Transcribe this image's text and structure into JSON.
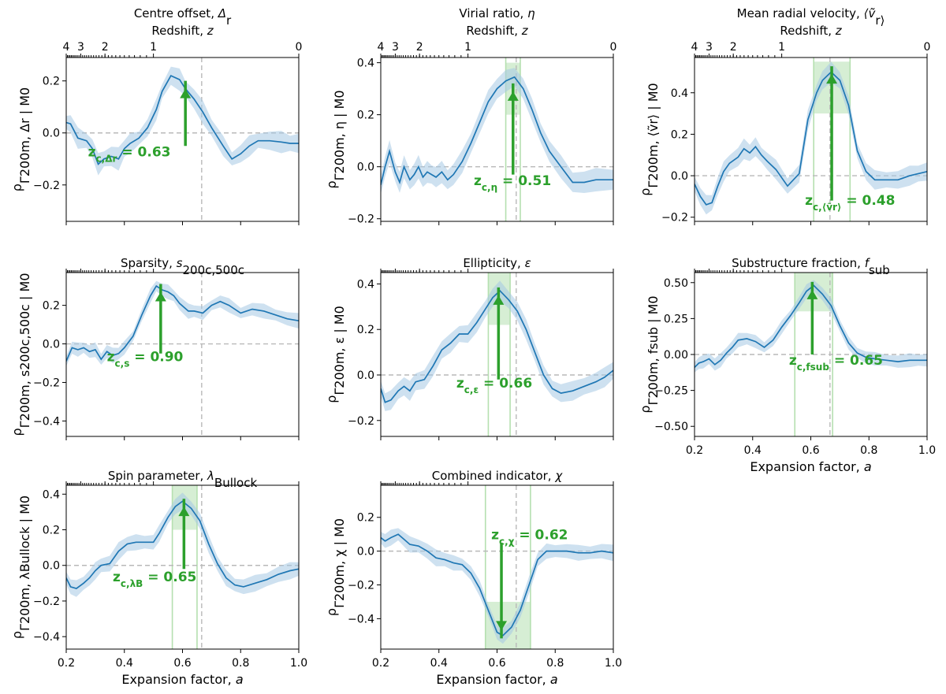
{
  "chart_data": [
    {
      "id": "offset",
      "type": "line",
      "title_lines": [
        "Centre offset, Δ_r",
        "Redshift, z"
      ],
      "ylabel": "ρ_{Γ200m, Δr | M0}",
      "ylim": [
        -0.34,
        0.29
      ],
      "yticks": [
        -0.2,
        0.0,
        0.2
      ],
      "xlim": [
        0.2,
        1.0
      ],
      "top_axis": true,
      "xlabel": "",
      "annotation": "zc,Δr = 0.63",
      "series": [
        {
          "x": [
            0.2,
            0.215,
            0.24,
            0.27,
            0.29,
            0.31,
            0.33,
            0.355,
            0.38,
            0.4,
            0.42,
            0.45,
            0.48,
            0.51,
            0.53,
            0.56,
            0.59,
            0.61,
            0.64,
            0.67,
            0.7,
            0.74,
            0.77,
            0.8,
            0.83,
            0.86,
            0.9,
            0.94,
            0.97,
            1.0
          ],
          "y": [
            0.04,
            0.035,
            -0.02,
            -0.03,
            -0.06,
            -0.12,
            -0.1,
            -0.09,
            -0.1,
            -0.06,
            -0.04,
            -0.02,
            0.02,
            0.09,
            0.16,
            0.22,
            0.205,
            0.17,
            0.13,
            0.08,
            0.02,
            -0.05,
            -0.1,
            -0.08,
            -0.05,
            -0.03,
            -0.03,
            -0.035,
            -0.04,
            -0.04
          ]
        }
      ]
    },
    {
      "id": "virial",
      "type": "line",
      "title_lines": [
        "Virial ratio, η",
        "Redshift, z"
      ],
      "ylabel": "ρ_{Γ200m, η | M0}",
      "ylim": [
        -0.21,
        0.42
      ],
      "yticks": [
        -0.2,
        0.0,
        0.2,
        0.4
      ],
      "xlim": [
        0.2,
        1.0
      ],
      "top_axis": true,
      "xlabel": "",
      "annotation": "zc,η = 0.51",
      "series": [
        {
          "x": [
            0.2,
            0.215,
            0.23,
            0.25,
            0.265,
            0.28,
            0.3,
            0.315,
            0.33,
            0.345,
            0.36,
            0.375,
            0.39,
            0.41,
            0.43,
            0.45,
            0.48,
            0.51,
            0.54,
            0.57,
            0.6,
            0.63,
            0.66,
            0.69,
            0.72,
            0.75,
            0.78,
            0.82,
            0.86,
            0.9,
            0.94,
            1.0
          ],
          "y": [
            -0.07,
            0.0,
            0.06,
            -0.02,
            -0.06,
            0.0,
            -0.05,
            -0.03,
            0.0,
            -0.04,
            -0.02,
            -0.03,
            -0.04,
            -0.02,
            -0.05,
            -0.03,
            0.02,
            0.09,
            0.17,
            0.25,
            0.3,
            0.33,
            0.345,
            0.3,
            0.22,
            0.13,
            0.06,
            0.0,
            -0.06,
            -0.06,
            -0.05,
            -0.05
          ]
        }
      ]
    },
    {
      "id": "velocity",
      "type": "line",
      "title_lines": [
        "Mean radial velocity, ⟨ṽ_r⟩",
        "Redshift, z"
      ],
      "ylabel": "ρ_{Γ200m, ⟨ṽr⟩ | M0}",
      "ylim": [
        -0.22,
        0.57
      ],
      "yticks": [
        -0.2,
        0.0,
        0.2,
        0.4
      ],
      "xlim": [
        0.2,
        1.0
      ],
      "top_axis": true,
      "xlabel": "",
      "annotation": "zc,⟨ṽr⟩ = 0.48",
      "series": [
        {
          "x": [
            0.2,
            0.22,
            0.24,
            0.26,
            0.28,
            0.3,
            0.32,
            0.35,
            0.37,
            0.39,
            0.41,
            0.43,
            0.45,
            0.48,
            0.52,
            0.56,
            0.59,
            0.62,
            0.64,
            0.67,
            0.7,
            0.73,
            0.76,
            0.79,
            0.82,
            0.86,
            0.9,
            0.94,
            0.97,
            1.0
          ],
          "y": [
            -0.04,
            -0.1,
            -0.14,
            -0.13,
            -0.05,
            0.02,
            0.06,
            0.09,
            0.13,
            0.11,
            0.14,
            0.1,
            0.07,
            0.03,
            -0.05,
            0.01,
            0.27,
            0.4,
            0.46,
            0.5,
            0.46,
            0.34,
            0.12,
            0.02,
            -0.02,
            -0.02,
            -0.02,
            0.0,
            0.01,
            0.02
          ]
        }
      ]
    },
    {
      "id": "sparsity",
      "type": "line",
      "title_lines": [
        "Sparsity, s_200c,500c"
      ],
      "ylabel": "ρ_{Γ200m, s200c,500c | M0}",
      "ylim": [
        -0.48,
        0.37
      ],
      "yticks": [
        -0.4,
        -0.2,
        0.0,
        0.2
      ],
      "xlim": [
        0.2,
        1.0
      ],
      "top_axis": false,
      "xlabel": "",
      "annotation": "zc,s = 0.90",
      "series": [
        {
          "x": [
            0.2,
            0.22,
            0.24,
            0.26,
            0.28,
            0.3,
            0.32,
            0.34,
            0.36,
            0.38,
            0.4,
            0.43,
            0.46,
            0.49,
            0.51,
            0.53,
            0.55,
            0.57,
            0.59,
            0.62,
            0.64,
            0.67,
            0.7,
            0.73,
            0.76,
            0.8,
            0.84,
            0.88,
            0.92,
            0.96,
            1.0
          ],
          "y": [
            -0.09,
            -0.02,
            -0.03,
            -0.02,
            -0.04,
            -0.03,
            -0.08,
            -0.04,
            -0.06,
            -0.05,
            -0.02,
            0.04,
            0.15,
            0.25,
            0.3,
            0.28,
            0.27,
            0.25,
            0.21,
            0.17,
            0.17,
            0.16,
            0.2,
            0.22,
            0.2,
            0.16,
            0.18,
            0.17,
            0.15,
            0.13,
            0.12
          ]
        }
      ]
    },
    {
      "id": "ellipticity",
      "type": "line",
      "title_lines": [
        "Ellipticity, ε"
      ],
      "ylabel": "ρ_{Γ200m, ε | M0}",
      "ylim": [
        -0.27,
        0.45
      ],
      "yticks": [
        -0.2,
        0.0,
        0.2,
        0.4
      ],
      "xlim": [
        0.2,
        1.0
      ],
      "top_axis": false,
      "xlabel": "",
      "annotation": "zc,ε = 0.66",
      "series": [
        {
          "x": [
            0.2,
            0.215,
            0.235,
            0.26,
            0.28,
            0.3,
            0.32,
            0.35,
            0.38,
            0.41,
            0.44,
            0.47,
            0.5,
            0.53,
            0.56,
            0.585,
            0.61,
            0.64,
            0.67,
            0.7,
            0.73,
            0.76,
            0.79,
            0.82,
            0.86,
            0.9,
            0.94,
            0.97,
            1.0
          ],
          "y": [
            -0.06,
            -0.12,
            -0.11,
            -0.07,
            -0.05,
            -0.07,
            -0.03,
            -0.02,
            0.04,
            0.11,
            0.14,
            0.18,
            0.18,
            0.23,
            0.29,
            0.34,
            0.37,
            0.33,
            0.28,
            0.2,
            0.1,
            0.0,
            -0.06,
            -0.08,
            -0.07,
            -0.05,
            -0.03,
            -0.01,
            0.02
          ]
        }
      ]
    },
    {
      "id": "substructure",
      "type": "line",
      "title_lines": [
        "Substructure fraction, f_sub"
      ],
      "ylabel": "ρ_{Γ200m, fsub | M0}",
      "ylim": [
        -0.57,
        0.57
      ],
      "yticks": [
        -0.5,
        -0.25,
        0.0,
        0.25,
        0.5
      ],
      "xlim": [
        0.2,
        1.0
      ],
      "top_axis": false,
      "xlabel": "Expansion factor, a",
      "annotation": "zc,fsub = 0.65",
      "series": [
        {
          "x": [
            0.2,
            0.215,
            0.23,
            0.25,
            0.27,
            0.29,
            0.31,
            0.33,
            0.35,
            0.38,
            0.41,
            0.44,
            0.47,
            0.5,
            0.53,
            0.56,
            0.585,
            0.61,
            0.64,
            0.67,
            0.7,
            0.73,
            0.76,
            0.79,
            0.82,
            0.86,
            0.9,
            0.94,
            0.97,
            1.0
          ],
          "y": [
            -0.09,
            -0.06,
            -0.05,
            -0.03,
            -0.07,
            -0.04,
            0.01,
            0.05,
            0.1,
            0.11,
            0.09,
            0.05,
            0.1,
            0.19,
            0.27,
            0.36,
            0.44,
            0.48,
            0.42,
            0.34,
            0.2,
            0.08,
            0.01,
            -0.02,
            -0.03,
            -0.04,
            -0.05,
            -0.04,
            -0.04,
            -0.04
          ]
        }
      ]
    },
    {
      "id": "spin",
      "type": "line",
      "title_lines": [
        "Spin parameter, λ_Bullock"
      ],
      "ylabel": "ρ_{Γ200m, λBullock | M0}",
      "ylim": [
        -0.47,
        0.45
      ],
      "yticks": [
        -0.4,
        -0.2,
        0.0,
        0.2,
        0.4
      ],
      "xlim": [
        0.2,
        1.0
      ],
      "top_axis": false,
      "xlabel": "Expansion factor, a",
      "annotation": "zc,λB = 0.65",
      "series": [
        {
          "x": [
            0.2,
            0.215,
            0.235,
            0.26,
            0.28,
            0.3,
            0.32,
            0.35,
            0.38,
            0.41,
            0.44,
            0.47,
            0.5,
            0.52,
            0.55,
            0.575,
            0.6,
            0.63,
            0.66,
            0.69,
            0.72,
            0.75,
            0.78,
            0.81,
            0.85,
            0.89,
            0.93,
            0.97,
            1.0
          ],
          "y": [
            -0.07,
            -0.12,
            -0.13,
            -0.1,
            -0.07,
            -0.03,
            0.0,
            0.01,
            0.08,
            0.12,
            0.13,
            0.13,
            0.13,
            0.18,
            0.27,
            0.33,
            0.36,
            0.32,
            0.25,
            0.12,
            0.01,
            -0.07,
            -0.11,
            -0.12,
            -0.1,
            -0.08,
            -0.05,
            -0.03,
            -0.02
          ]
        }
      ]
    },
    {
      "id": "combined",
      "type": "line",
      "title_lines": [
        "Combined indicator, χ"
      ],
      "ylabel": "ρ_{Γ200m, χ | M0}",
      "ylim": [
        -0.58,
        0.39
      ],
      "yticks": [
        -0.4,
        -0.2,
        0.0,
        0.2
      ],
      "xlim": [
        0.2,
        1.0
      ],
      "top_axis": false,
      "xlabel": "Expansion factor, a",
      "annotation": "zc,χ = 0.62",
      "series": [
        {
          "x": [
            0.2,
            0.215,
            0.235,
            0.26,
            0.28,
            0.3,
            0.33,
            0.36,
            0.39,
            0.42,
            0.45,
            0.48,
            0.51,
            0.54,
            0.57,
            0.6,
            0.62,
            0.65,
            0.68,
            0.71,
            0.74,
            0.77,
            0.8,
            0.84,
            0.88,
            0.92,
            0.96,
            1.0
          ],
          "y": [
            0.08,
            0.06,
            0.08,
            0.1,
            0.07,
            0.04,
            0.03,
            0.0,
            -0.04,
            -0.05,
            -0.07,
            -0.08,
            -0.13,
            -0.22,
            -0.35,
            -0.48,
            -0.5,
            -0.45,
            -0.35,
            -0.2,
            -0.05,
            0.0,
            0.0,
            0.0,
            -0.01,
            -0.01,
            0.0,
            -0.01
          ]
        }
      ]
    }
  ]
}
